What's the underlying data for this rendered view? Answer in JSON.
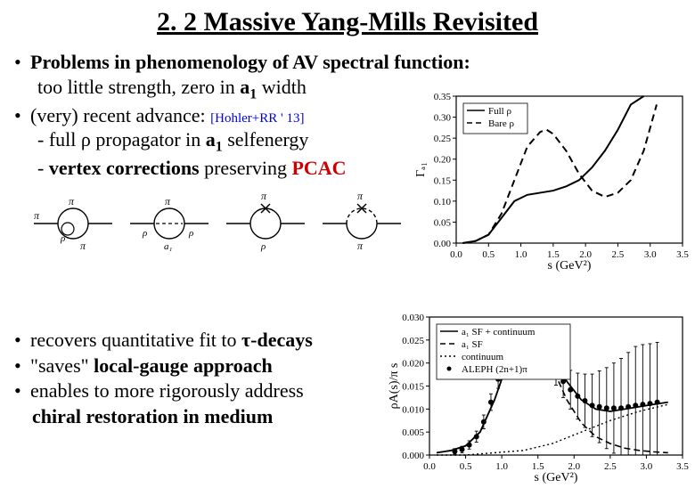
{
  "title": "2. 2 Massive Yang-Mills Revisited",
  "upper": {
    "b1": "Problems in phenomenology of AV spectral function:",
    "b1_sub": "too little strength, zero in ",
    "b1_sub_a1": "a",
    "b1_sub_1": "1",
    "b1_sub_tail": " width",
    "b2": "(very) recent advance:  ",
    "cite": "[Hohler+RR ' 13]",
    "b2a_pre": "- full ",
    "b2a_rho": "ρ",
    "b2a_mid": " propagator in ",
    "b2a_a1": "a",
    "b2a_1": "1",
    "b2a_tail": " selfenergy",
    "b2b_pre": "- ",
    "b2b_vc": "vertex corrections",
    "b2b_mid": " preserving ",
    "b2b_pcac": "PCAC"
  },
  "lower": {
    "l1_pre": "recovers quantitative fit to ",
    "l1_tau": "τ",
    "l1_tail": "-decays",
    "l2_pre": "\"saves\" ",
    "l2_b": "local-gauge approach",
    "l3_pre": "enables to more rigorously address",
    "l3b": "chiral restoration in medium"
  },
  "feynman": {
    "labels": [
      "π",
      "π",
      "ρ",
      "π",
      "π",
      "π",
      "ρ",
      "π",
      "π",
      "ρ",
      "π",
      "π"
    ]
  },
  "chart_top": {
    "type": "line",
    "xlabel": "s (GeV²)",
    "xlim": [
      0.0,
      3.5
    ],
    "xtick_step": 0.5,
    "ylabel": "Γₐ₁",
    "ylim": [
      0.0,
      0.35
    ],
    "ytick_step": 0.05,
    "legend_items": [
      {
        "label": "Full ρ",
        "style": "solid",
        "color": "#000000"
      },
      {
        "label": "Bare ρ",
        "style": "dash",
        "color": "#000000"
      }
    ],
    "series": {
      "full_rho": {
        "color": "#000000",
        "linewidth": 2,
        "dash": "none",
        "points": [
          [
            0.1,
            0.0
          ],
          [
            0.3,
            0.005
          ],
          [
            0.5,
            0.02
          ],
          [
            0.7,
            0.06
          ],
          [
            0.9,
            0.1
          ],
          [
            1.1,
            0.115
          ],
          [
            1.3,
            0.12
          ],
          [
            1.5,
            0.125
          ],
          [
            1.7,
            0.135
          ],
          [
            1.9,
            0.15
          ],
          [
            2.1,
            0.18
          ],
          [
            2.3,
            0.22
          ],
          [
            2.5,
            0.27
          ],
          [
            2.7,
            0.33
          ],
          [
            2.9,
            0.4
          ]
        ]
      },
      "bare_rho": {
        "color": "#000000",
        "linewidth": 2,
        "dash": "8,5",
        "points": [
          [
            0.1,
            0.0
          ],
          [
            0.3,
            0.005
          ],
          [
            0.5,
            0.02
          ],
          [
            0.7,
            0.07
          ],
          [
            0.9,
            0.15
          ],
          [
            1.1,
            0.23
          ],
          [
            1.3,
            0.265
          ],
          [
            1.4,
            0.27
          ],
          [
            1.5,
            0.26
          ],
          [
            1.7,
            0.22
          ],
          [
            1.9,
            0.165
          ],
          [
            2.1,
            0.125
          ],
          [
            2.3,
            0.11
          ],
          [
            2.5,
            0.12
          ],
          [
            2.7,
            0.15
          ],
          [
            2.9,
            0.22
          ],
          [
            3.1,
            0.33
          ]
        ]
      }
    },
    "background_color": "#ffffff",
    "axis_color": "#000000",
    "tick_fontsize": 11,
    "label_fontsize": 14
  },
  "chart_bottom": {
    "type": "line-with-data",
    "xlabel": "s (GeV²)",
    "xlim": [
      0.0,
      3.5
    ],
    "xtick_step": 0.5,
    "ylabel": "ρA(s)/π s",
    "ylim": [
      0.0,
      0.03
    ],
    "ytick_step": 0.005,
    "legend_items": [
      {
        "label": "a₁ SF + continuum",
        "style": "solid",
        "color": "#000000"
      },
      {
        "label": "a₁ SF",
        "style": "dash",
        "color": "#000000"
      },
      {
        "label": "continuum",
        "style": "dot",
        "color": "#000000"
      },
      {
        "label": "ALEPH (2n+1)π",
        "style": "marker",
        "color": "#000000"
      }
    ],
    "series": {
      "a1sf_cont": {
        "color": "#000000",
        "linewidth": 1.8,
        "dash": "none",
        "points": [
          [
            0.1,
            0.0005
          ],
          [
            0.3,
            0.001
          ],
          [
            0.5,
            0.002
          ],
          [
            0.7,
            0.005
          ],
          [
            0.9,
            0.012
          ],
          [
            1.1,
            0.021
          ],
          [
            1.3,
            0.026
          ],
          [
            1.5,
            0.025
          ],
          [
            1.7,
            0.021
          ],
          [
            1.9,
            0.016
          ],
          [
            2.1,
            0.012
          ],
          [
            2.3,
            0.01
          ],
          [
            2.5,
            0.0095
          ],
          [
            2.7,
            0.01
          ],
          [
            2.9,
            0.0105
          ],
          [
            3.1,
            0.011
          ],
          [
            3.3,
            0.0115
          ]
        ]
      },
      "a1sf": {
        "color": "#000000",
        "linewidth": 1.6,
        "dash": "7,4",
        "points": [
          [
            0.1,
            0.0005
          ],
          [
            0.3,
            0.001
          ],
          [
            0.5,
            0.002
          ],
          [
            0.7,
            0.005
          ],
          [
            0.9,
            0.012
          ],
          [
            1.1,
            0.021
          ],
          [
            1.3,
            0.026
          ],
          [
            1.5,
            0.024
          ],
          [
            1.7,
            0.019
          ],
          [
            1.9,
            0.012
          ],
          [
            2.1,
            0.007
          ],
          [
            2.3,
            0.004
          ],
          [
            2.5,
            0.0025
          ],
          [
            2.7,
            0.0015
          ],
          [
            2.9,
            0.001
          ],
          [
            3.1,
            0.0007
          ],
          [
            3.3,
            0.0005
          ]
        ]
      },
      "continuum": {
        "color": "#000000",
        "linewidth": 1.4,
        "dash": "2,3",
        "points": [
          [
            0.1,
            0.0
          ],
          [
            0.5,
            0.0
          ],
          [
            0.9,
            0.0005
          ],
          [
            1.3,
            0.001
          ],
          [
            1.7,
            0.0025
          ],
          [
            2.1,
            0.005
          ],
          [
            2.5,
            0.0075
          ],
          [
            2.9,
            0.0095
          ],
          [
            3.3,
            0.011
          ]
        ]
      }
    },
    "data_points": {
      "marker": "circle",
      "marker_size": 3,
      "color": "#000000",
      "points": [
        [
          0.35,
          0.0008,
          0.0006
        ],
        [
          0.45,
          0.0012,
          0.0007
        ],
        [
          0.55,
          0.0022,
          0.0009
        ],
        [
          0.65,
          0.004,
          0.0012
        ],
        [
          0.75,
          0.0072,
          0.0015
        ],
        [
          0.85,
          0.0115,
          0.0018
        ],
        [
          0.95,
          0.0165,
          0.002
        ],
        [
          1.05,
          0.021,
          0.0022
        ],
        [
          1.15,
          0.024,
          0.0022
        ],
        [
          1.25,
          0.0258,
          0.0022
        ],
        [
          1.35,
          0.0258,
          0.0022
        ],
        [
          1.45,
          0.0248,
          0.0022
        ],
        [
          1.55,
          0.023,
          0.0024
        ],
        [
          1.65,
          0.0208,
          0.0026
        ],
        [
          1.75,
          0.0182,
          0.003
        ],
        [
          1.85,
          0.016,
          0.0035
        ],
        [
          1.95,
          0.0142,
          0.0042
        ],
        [
          2.05,
          0.0128,
          0.005
        ],
        [
          2.15,
          0.0118,
          0.0058
        ],
        [
          2.25,
          0.0108,
          0.0068
        ],
        [
          2.35,
          0.0105,
          0.0078
        ],
        [
          2.45,
          0.0102,
          0.0088
        ],
        [
          2.55,
          0.0102,
          0.0098
        ],
        [
          2.65,
          0.0102,
          0.0108
        ],
        [
          2.75,
          0.0105,
          0.0118
        ],
        [
          2.85,
          0.0108,
          0.0128
        ],
        [
          2.95,
          0.011,
          0.013
        ],
        [
          3.05,
          0.0112,
          0.013
        ],
        [
          3.15,
          0.0115,
          0.013
        ]
      ]
    },
    "background_color": "#ffffff",
    "axis_color": "#000000",
    "tick_fontsize": 11,
    "label_fontsize": 14
  }
}
